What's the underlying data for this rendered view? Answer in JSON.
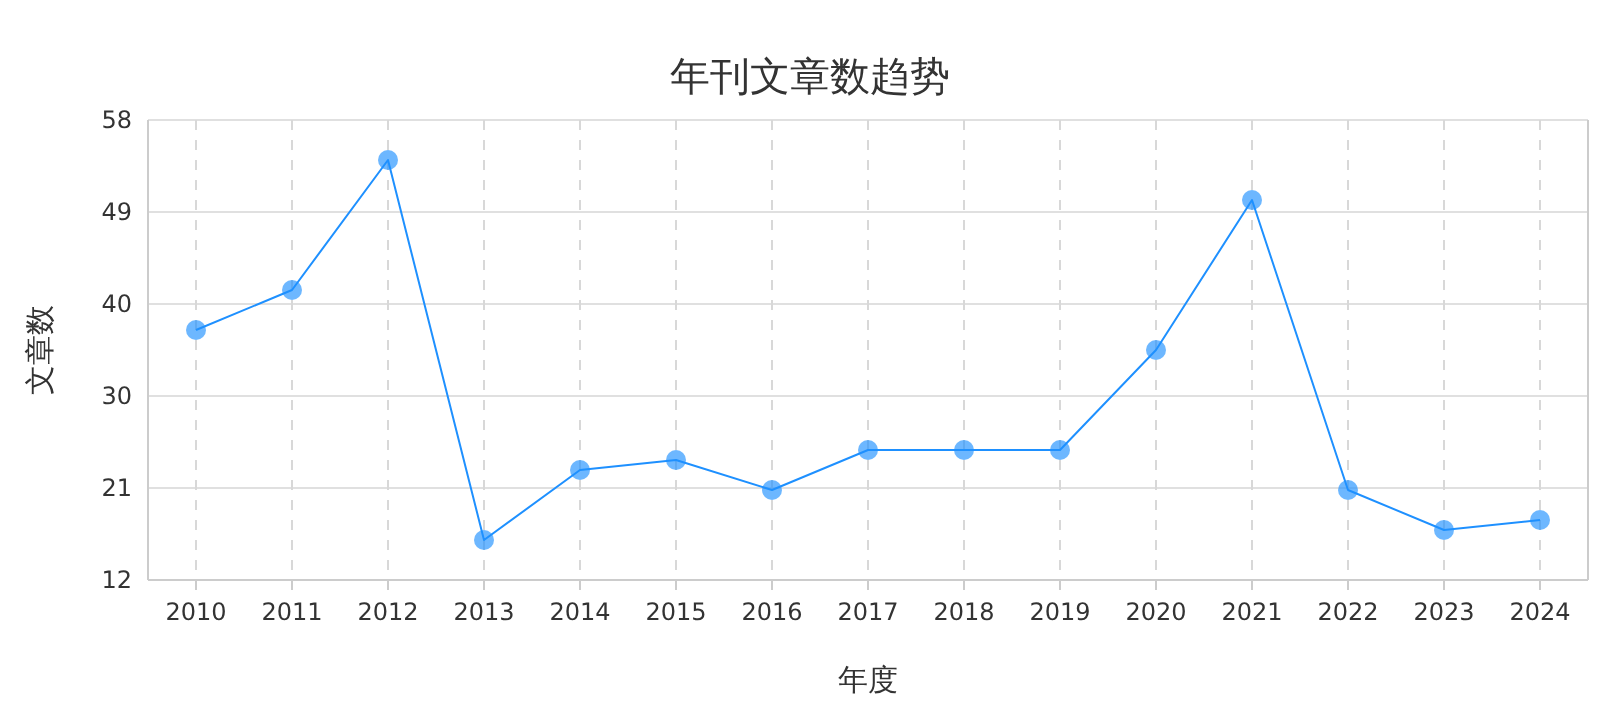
{
  "chart_data": {
    "type": "line",
    "title": "年刊文章数趋势",
    "xlabel": "年度",
    "ylabel": "文章数",
    "categories": [
      "2010",
      "2011",
      "2012",
      "2013",
      "2014",
      "2015",
      "2016",
      "2017",
      "2018",
      "2019",
      "2020",
      "2021",
      "2022",
      "2023",
      "2024"
    ],
    "series": [
      {
        "color": "#1e90ff",
        "values": [
          37,
          41,
          54,
          16,
          23,
          24,
          21,
          25,
          25,
          25,
          35,
          50,
          21,
          17,
          18
        ]
      }
    ],
    "ylim": [
      12,
      58
    ],
    "yticks": [
      12,
      {
        "value": 21.2,
        "label": "21"
      },
      {
        "value": 30.4,
        "label": "30"
      },
      {
        "value": 39.6,
        "label": "40"
      },
      {
        "value": 48.8,
        "label": "49"
      },
      58
    ],
    "grid": true,
    "marker": "circle",
    "line_style": "solid"
  }
}
